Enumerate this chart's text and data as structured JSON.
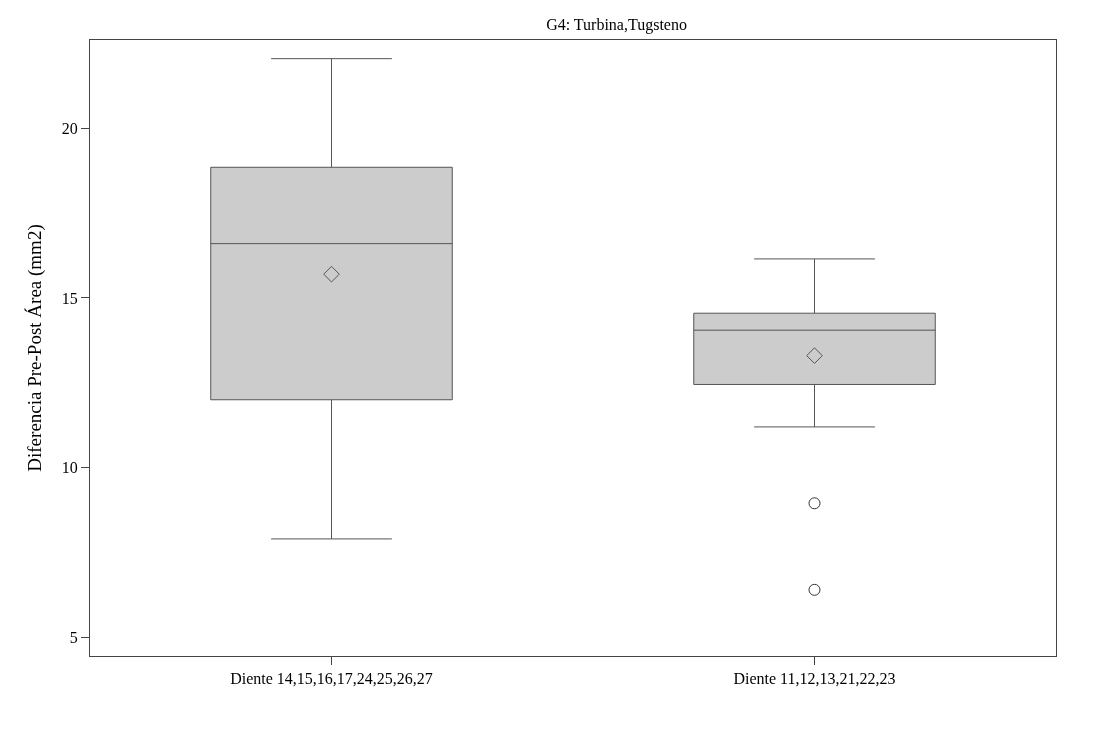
{
  "chart_data": {
    "type": "box",
    "title": "G4: Turbina,Tugsteno",
    "ylabel": "Diferencia Pre-Post Área (mm2)",
    "categories": [
      "Diente 14,15,16,17,24,25,26,27",
      "Diente 11,12,13,21,22,23"
    ],
    "boxes": [
      {
        "low": 7.9,
        "q1": 12.0,
        "median": 16.6,
        "q3": 18.85,
        "high": 22.05,
        "mean": 15.7
      },
      {
        "low": 11.2,
        "q1": 12.45,
        "median": 14.05,
        "q3": 14.55,
        "high": 16.15,
        "mean": 13.3,
        "outliers": [
          8.95,
          6.4
        ]
      }
    ],
    "color": "#cccccc",
    "ylim": [
      4.45,
      22.6
    ],
    "yticks": [
      5,
      10,
      15,
      20
    ]
  }
}
